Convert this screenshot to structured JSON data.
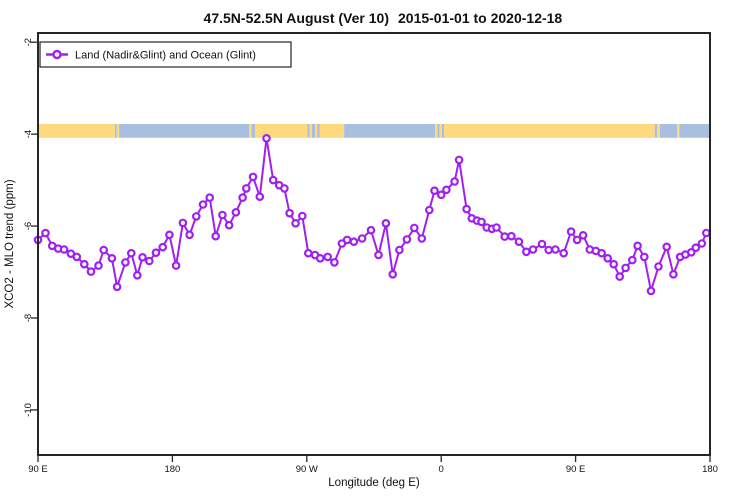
{
  "title": {
    "range": "47.5N-52.5N August (Ver 10)",
    "dates": "2015-01-01 to 2020-12-18"
  },
  "legend": {
    "label": "Land (Nadir&Glint) and Ocean (Glint)"
  },
  "axes": {
    "x": {
      "label": "Longitude (deg E)",
      "ticks": [
        {
          "lon": 90,
          "label": "90 E"
        },
        {
          "lon": 180,
          "label": "180"
        },
        {
          "lon": 270,
          "label": "90 W"
        },
        {
          "lon": 360,
          "label": "0"
        },
        {
          "lon": 450,
          "label": "90 E"
        },
        {
          "lon": 540,
          "label": "180"
        }
      ]
    },
    "y": {
      "label": "XCO2 - MLO trend (ppm)",
      "ticks": [
        {
          "v": -2,
          "label": "-2"
        },
        {
          "v": -4,
          "label": "-4"
        },
        {
          "v": -6,
          "label": "-6"
        },
        {
          "v": -8,
          "label": "-8"
        },
        {
          "v": -10,
          "label": "-10"
        }
      ]
    }
  },
  "colors": {
    "series": "#A020F0",
    "marker_fill": "#ffffff",
    "land": "#FFD97E",
    "ocean": "#A9BFE0",
    "frame": "#262626"
  },
  "chart_data": {
    "type": "line",
    "title": "47.5N-52.5N August (Ver 10)  2015-01-01 to 2020-12-18",
    "xlabel": "Longitude (deg E)",
    "ylabel": "XCO2 - MLO trend (ppm)",
    "xlim": [
      90,
      540
    ],
    "ylim": [
      -10.98,
      -1.8
    ],
    "grid": false,
    "legend_position": "top-left",
    "series_name": "Land (Nadir&Glint) and Ocean (Glint)",
    "marker": "open-circle",
    "x": [
      90,
      95,
      99.5,
      103.5,
      107.5,
      112,
      116,
      121,
      125.5,
      130.5,
      134,
      139.5,
      143,
      148.5,
      152.5,
      156.5,
      160,
      164.5,
      169,
      173.5,
      178,
      182.5,
      187,
      191.5,
      196,
      200.5,
      205,
      209,
      213.5,
      218,
      222.5,
      227,
      229.5,
      234,
      238.5,
      243,
      247.5,
      251.5,
      255,
      258.5,
      262.5,
      267,
      271,
      275.5,
      279,
      284,
      288.5,
      293.5,
      297,
      301.5,
      307,
      313,
      318,
      323,
      327.5,
      332,
      337,
      342,
      347,
      352,
      355.5,
      360,
      363.5,
      369,
      372,
      377,
      380.5,
      384,
      387,
      390.5,
      394,
      397,
      402.5,
      407,
      412,
      417,
      421.5,
      427.5,
      432,
      436.5,
      442,
      447,
      451,
      455,
      459.5,
      463.5,
      467.5,
      471.5,
      475.5,
      479.5,
      483.5,
      488,
      491.5,
      496,
      500.5,
      505.5,
      511,
      515.5,
      520,
      523.5,
      527.5,
      530.5,
      534.5,
      537.5
    ],
    "y": [
      -6.3,
      -6.15,
      -6.43,
      -6.49,
      -6.51,
      -6.6,
      -6.67,
      -6.83,
      -6.99,
      -6.86,
      -6.52,
      -6.7,
      -7.32,
      -6.79,
      -6.59,
      -7.07,
      -6.68,
      -6.76,
      -6.58,
      -6.46,
      -6.19,
      -6.86,
      -5.93,
      -6.19,
      -5.79,
      -5.53,
      -5.38,
      -6.22,
      -5.76,
      -5.98,
      -5.7,
      -5.38,
      -5.18,
      -4.93,
      -5.36,
      -4.09,
      -5.0,
      -5.11,
      -5.18,
      -5.72,
      -5.94,
      -5.78,
      -6.59,
      -6.63,
      -6.7,
      -6.67,
      -6.79,
      -6.38,
      -6.3,
      -6.34,
      -6.27,
      -6.09,
      -6.63,
      -5.94,
      -7.05,
      -6.52,
      -6.29,
      -6.04,
      -6.27,
      -5.65,
      -5.23,
      -5.32,
      -5.21,
      -5.03,
      -4.56,
      -5.63,
      -5.83,
      -5.88,
      -5.91,
      -6.03,
      -6.06,
      -6.03,
      -6.23,
      -6.22,
      -6.34,
      -6.56,
      -6.51,
      -6.39,
      -6.52,
      -6.51,
      -6.59,
      -6.12,
      -6.3,
      -6.2,
      -6.51,
      -6.54,
      -6.59,
      -6.7,
      -6.83,
      -7.1,
      -6.91,
      -6.74,
      -6.43,
      -6.67,
      -7.41,
      -6.88,
      -6.45,
      -7.05,
      -6.67,
      -6.62,
      -6.57,
      -6.47,
      -6.38,
      -6.15
    ],
    "band": {
      "description": "land/ocean surface strip along latitude belt",
      "value_top": -3.78,
      "value_bottom": -4.08,
      "segments": [
        {
          "from": 90,
          "to": 141.5,
          "surface": "land"
        },
        {
          "from": 141.5,
          "to": 142.8,
          "surface": "ocean"
        },
        {
          "from": 142.8,
          "to": 144.3,
          "surface": "land"
        },
        {
          "from": 144.3,
          "to": 231.5,
          "surface": "ocean"
        },
        {
          "from": 231.5,
          "to": 233,
          "surface": "land"
        },
        {
          "from": 233,
          "to": 235.5,
          "surface": "ocean"
        },
        {
          "from": 235.5,
          "to": 270.5,
          "surface": "land"
        },
        {
          "from": 270.5,
          "to": 272,
          "surface": "ocean"
        },
        {
          "from": 272,
          "to": 273.5,
          "surface": "land"
        },
        {
          "from": 273.5,
          "to": 275.5,
          "surface": "ocean"
        },
        {
          "from": 275.5,
          "to": 277,
          "surface": "land"
        },
        {
          "from": 277,
          "to": 278.5,
          "surface": "ocean"
        },
        {
          "from": 278.5,
          "to": 295,
          "surface": "land"
        },
        {
          "from": 295,
          "to": 356,
          "surface": "ocean"
        },
        {
          "from": 356,
          "to": 357.5,
          "surface": "land"
        },
        {
          "from": 357.5,
          "to": 359,
          "surface": "ocean"
        },
        {
          "from": 359,
          "to": 360.5,
          "surface": "land"
        },
        {
          "from": 360.5,
          "to": 362,
          "surface": "ocean"
        },
        {
          "from": 362,
          "to": 503,
          "surface": "land"
        },
        {
          "from": 503,
          "to": 504.5,
          "surface": "ocean"
        },
        {
          "from": 504.5,
          "to": 506.5,
          "surface": "land"
        },
        {
          "from": 506.5,
          "to": 518,
          "surface": "ocean"
        },
        {
          "from": 518,
          "to": 519.5,
          "surface": "land"
        },
        {
          "from": 519.5,
          "to": 540,
          "surface": "ocean"
        }
      ]
    }
  }
}
